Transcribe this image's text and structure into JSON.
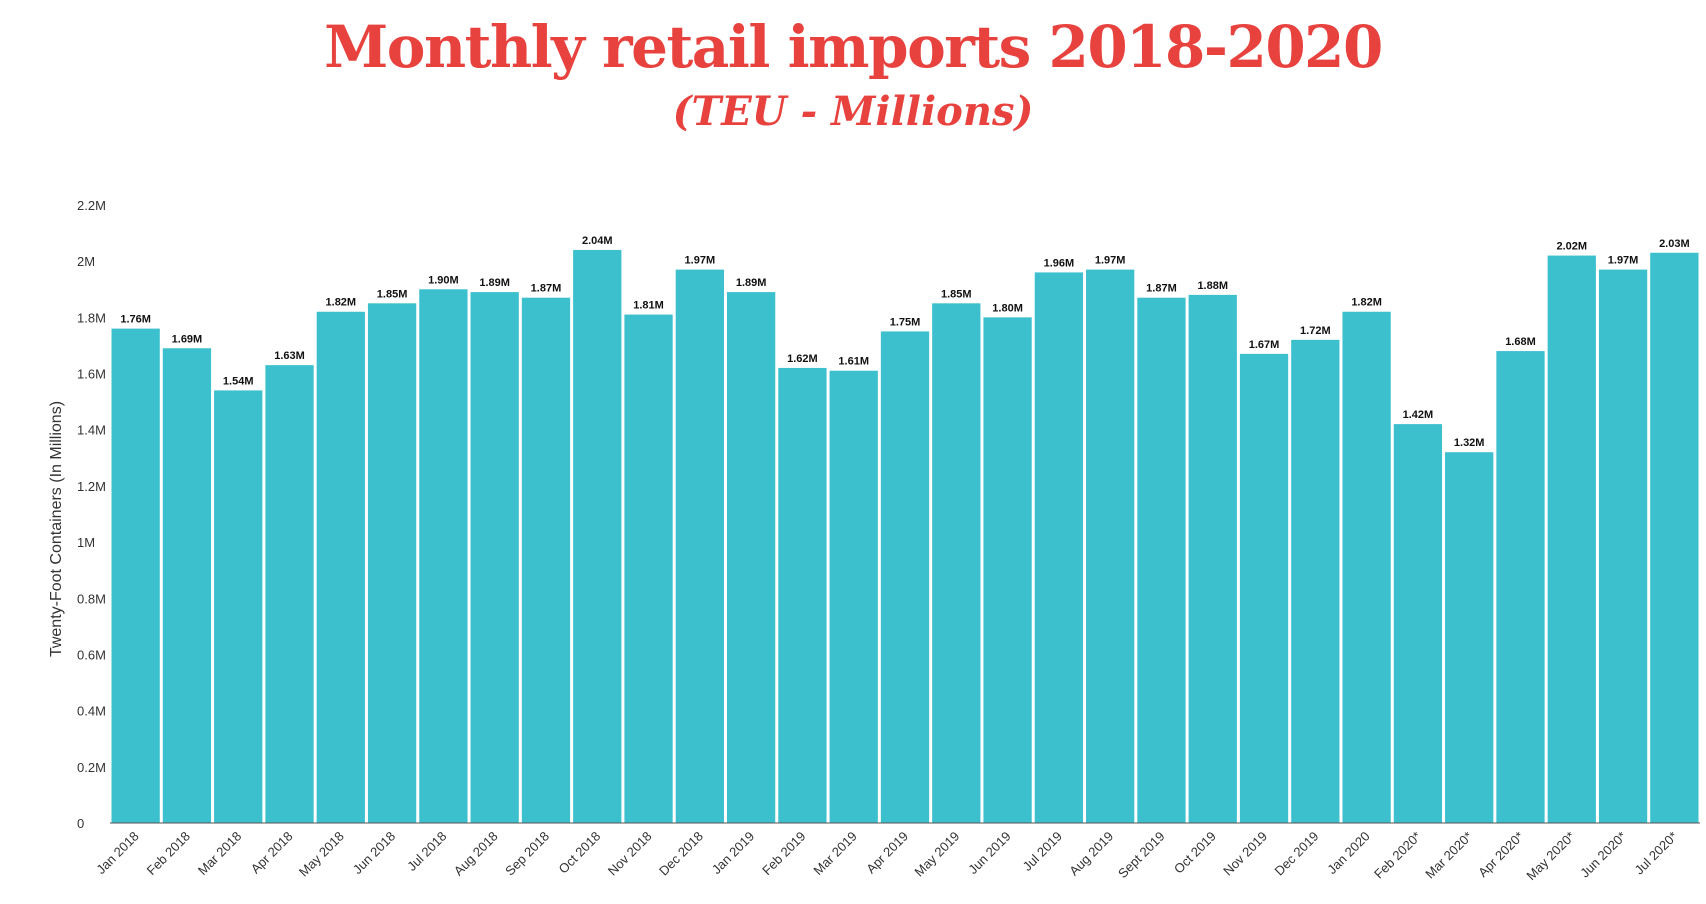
{
  "chart_data": {
    "type": "bar",
    "title": "Monthly retail imports 2018-2020",
    "subtitle": "(TEU - Millions)",
    "ylabel": "Twenty-Foot Containers (In Millions)",
    "xlabel": "",
    "ylim": [
      0,
      2.2
    ],
    "yticks": [
      {
        "value": 0,
        "label": "0"
      },
      {
        "value": 0.2,
        "label": "0.2M"
      },
      {
        "value": 0.4,
        "label": "0.4M"
      },
      {
        "value": 0.6,
        "label": "0.6M"
      },
      {
        "value": 0.8,
        "label": "0.8M"
      },
      {
        "value": 1.0,
        "label": "1M"
      },
      {
        "value": 1.2,
        "label": "1.2M"
      },
      {
        "value": 1.4,
        "label": "1.4M"
      },
      {
        "value": 1.6,
        "label": "1.6M"
      },
      {
        "value": 1.8,
        "label": "1.8M"
      },
      {
        "value": 2.0,
        "label": "2M"
      },
      {
        "value": 2.2,
        "label": "2.2M"
      }
    ],
    "categories": [
      "Jan 2018",
      "Feb 2018",
      "Mar 2018",
      "Apr 2018",
      "May 2018",
      "Jun 2018",
      "Jul 2018",
      "Aug 2018",
      "Sep 2018",
      "Oct 2018",
      "Nov 2018",
      "Dec 2018",
      "Jan 2019",
      "Feb 2019",
      "Mar 2019",
      "Apr 2019",
      "May 2019",
      "Jun 2019",
      "Jul 2019",
      "Aug 2019",
      "Sept 2019",
      "Oct 2019",
      "Nov 2019",
      "Dec 2019",
      "Jan 2020",
      "Feb 2020*",
      "Mar 2020*",
      "Apr 2020*",
      "May 2020*",
      "Jun 2020*",
      "Jul 2020*"
    ],
    "values": [
      1.76,
      1.69,
      1.54,
      1.63,
      1.82,
      1.85,
      1.9,
      1.89,
      1.87,
      2.04,
      1.81,
      1.97,
      1.89,
      1.62,
      1.61,
      1.75,
      1.85,
      1.8,
      1.96,
      1.97,
      1.87,
      1.88,
      1.67,
      1.72,
      1.82,
      1.42,
      1.32,
      1.68,
      2.02,
      1.97,
      2.03
    ],
    "data_labels": [
      "1.76M",
      "1.69M",
      "1.54M",
      "1.63M",
      "1.82M",
      "1.85M",
      "1.90M",
      "1.89M",
      "1.87M",
      "2.04M",
      "1.81M",
      "1.97M",
      "1.89M",
      "1.62M",
      "1.61M",
      "1.75M",
      "1.85M",
      "1.80M",
      "1.96M",
      "1.97M",
      "1.87M",
      "1.88M",
      "1.67M",
      "1.72M",
      "1.82M",
      "1.42M",
      "1.32M",
      "1.68M",
      "2.02M",
      "1.97M",
      "2.03M"
    ],
    "colors": {
      "bar": "#3dc0ce",
      "title": "#e8423f"
    }
  }
}
